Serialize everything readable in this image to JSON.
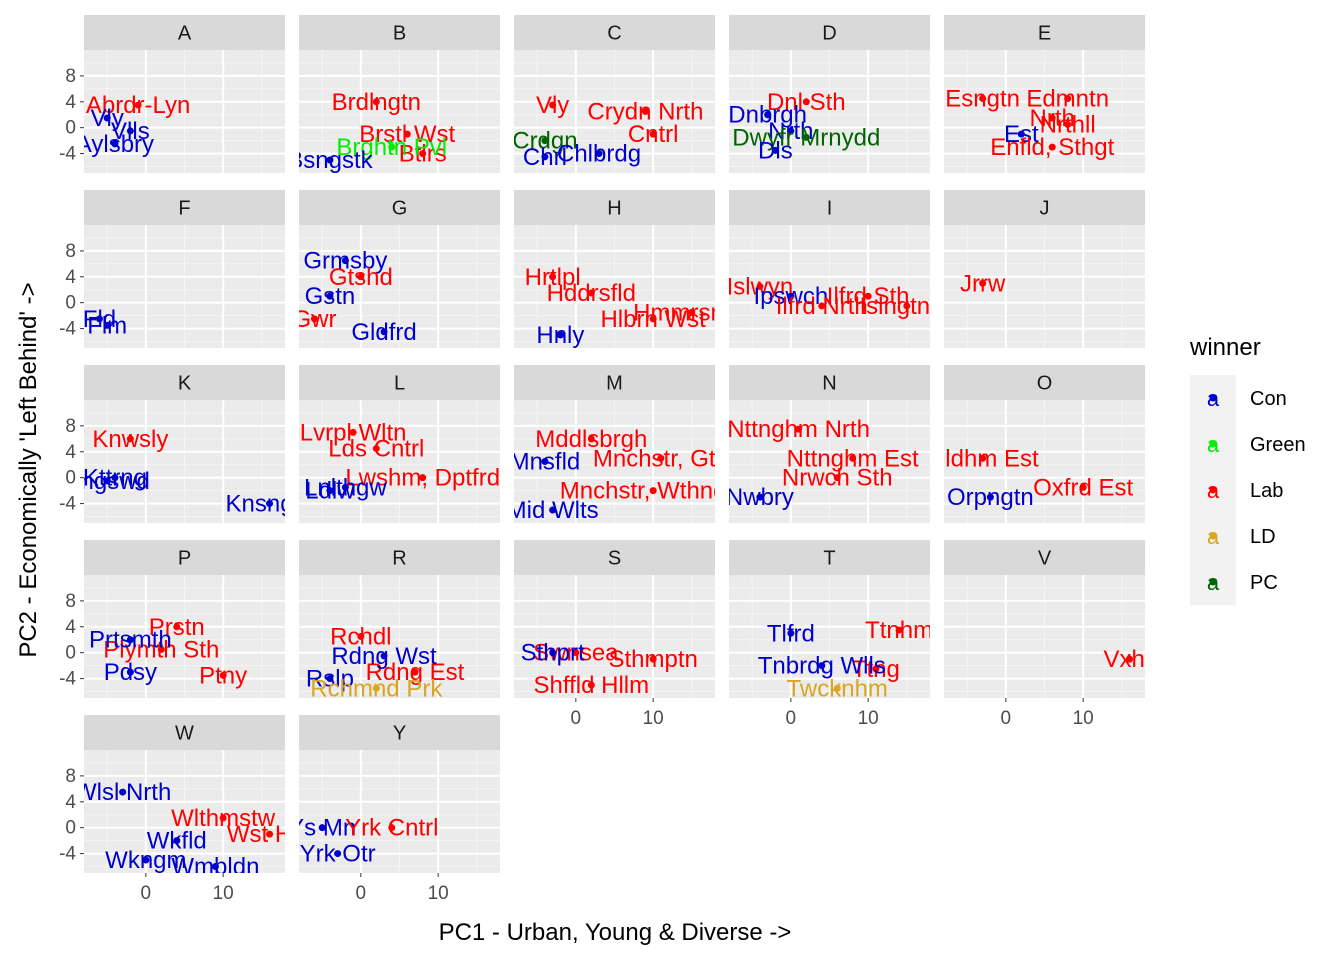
{
  "chart_data": {
    "type": "scatter",
    "facet_by": "first letter of constituency",
    "xlabel": "PC1 - Urban, Young & Diverse ->",
    "ylabel": "PC2 - Economically 'Left Behind' ->",
    "xlim": [
      -8,
      18
    ],
    "ylim": [
      -7,
      12
    ],
    "x_ticks": [
      0,
      10
    ],
    "y_ticks": [
      8,
      4,
      0,
      -4
    ],
    "legend": {
      "title": "winner",
      "entries": [
        {
          "name": "Con",
          "color": "#0000CD"
        },
        {
          "name": "Green",
          "color": "#00EE00"
        },
        {
          "name": "Lab",
          "color": "#FF0000"
        },
        {
          "name": "LD",
          "color": "#DAA520"
        },
        {
          "name": "PC",
          "color": "#006400"
        }
      ],
      "key_glyph": "a",
      "position": "right"
    },
    "panels": [
      {
        "facet": "A",
        "points": [
          {
            "label": "Abrdr-Lyn",
            "winner": "Lab",
            "x": -1,
            "y": 3.5
          },
          {
            "label": "Vly",
            "winner": "Con",
            "x": -5,
            "y": 1.5
          },
          {
            "label": "Vlls",
            "winner": "Con",
            "x": -2,
            "y": -0.5
          },
          {
            "label": "Aylsbry",
            "winner": "Con",
            "x": -4,
            "y": -2.5
          }
        ]
      },
      {
        "facet": "B",
        "points": [
          {
            "label": "Brdlngtn",
            "winner": "Lab",
            "x": 2,
            "y": 4
          },
          {
            "label": "Brstl Wst",
            "winner": "Lab",
            "x": 6,
            "y": -1
          },
          {
            "label": "Btlrs",
            "winner": "Lab",
            "x": 8,
            "y": -4
          },
          {
            "label": "Brghtn Pvl",
            "winner": "Green",
            "x": 4,
            "y": -3
          },
          {
            "label": "Bsngstk",
            "winner": "Con",
            "x": -4,
            "y": -5
          }
        ]
      },
      {
        "facet": "C",
        "points": [
          {
            "label": "Vly",
            "winner": "Lab",
            "x": -3,
            "y": 3.5
          },
          {
            "label": "Crydn Nrth",
            "winner": "Lab",
            "x": 9,
            "y": 2.5
          },
          {
            "label": "Cntrl",
            "winner": "Lab",
            "x": 10,
            "y": -1
          },
          {
            "label": "Crdgn",
            "winner": "PC",
            "x": -4,
            "y": -2
          },
          {
            "label": "Chlbrdg",
            "winner": "Con",
            "x": 3,
            "y": -4
          },
          {
            "label": "Chrl",
            "winner": "Con",
            "x": -4,
            "y": -4.5
          }
        ]
      },
      {
        "facet": "D",
        "points": [
          {
            "label": "Dnl Sth",
            "winner": "Lab",
            "x": 2,
            "y": 4
          },
          {
            "label": "Dnbrgh",
            "winner": "Con",
            "x": -3,
            "y": 2
          },
          {
            "label": "Nrth",
            "winner": "Con",
            "x": 0,
            "y": -0.5
          },
          {
            "label": "Dwyfr Mrnydd",
            "winner": "PC",
            "x": 2,
            "y": -1.5
          },
          {
            "label": "Dls",
            "winner": "Con",
            "x": -2,
            "y": -3.5
          }
        ]
      },
      {
        "facet": "E",
        "points": [
          {
            "label": "Esngtn",
            "winner": "Lab",
            "x": -3,
            "y": 4.5
          },
          {
            "label": "Edmntn",
            "winner": "Lab",
            "x": 8,
            "y": 4.5
          },
          {
            "label": "Nrth",
            "winner": "Lab",
            "x": 6,
            "y": 1.5
          },
          {
            "label": "Nrthll",
            "winner": "Lab",
            "x": 8,
            "y": 0.5
          },
          {
            "label": "Est",
            "winner": "Con",
            "x": 2,
            "y": -1
          },
          {
            "label": "Enfld, Sthgt",
            "winner": "Lab",
            "x": 6,
            "y": -3
          }
        ]
      },
      {
        "facet": "F",
        "points": [
          {
            "label": "Fld",
            "winner": "Con",
            "x": -6,
            "y": -2.5
          },
          {
            "label": "Flm",
            "winner": "Con",
            "x": -5,
            "y": -3.5
          }
        ]
      },
      {
        "facet": "G",
        "points": [
          {
            "label": "Grmsby",
            "winner": "Con",
            "x": -2,
            "y": 6.5
          },
          {
            "label": "Gtshd",
            "winner": "Lab",
            "x": 0,
            "y": 4
          },
          {
            "label": "Gstn",
            "winner": "Con",
            "x": -4,
            "y": 1
          },
          {
            "label": "Gwr",
            "winner": "Lab",
            "x": -6,
            "y": -2.5
          },
          {
            "label": "Gldfrd",
            "winner": "Con",
            "x": 3,
            "y": -4.5
          }
        ]
      },
      {
        "facet": "H",
        "points": [
          {
            "label": "Hrtlpl",
            "winner": "Lab",
            "x": -3,
            "y": 4
          },
          {
            "label": "Hddrsfld",
            "winner": "Lab",
            "x": 2,
            "y": 1.5
          },
          {
            "label": "Hmmrsmth",
            "winner": "Lab",
            "x": 15,
            "y": -1.5
          },
          {
            "label": "Hlbrn Wst",
            "winner": "Lab",
            "x": 10,
            "y": -2.5
          },
          {
            "label": "Hnly",
            "winner": "Con",
            "x": -2,
            "y": -5
          }
        ]
      },
      {
        "facet": "I",
        "points": [
          {
            "label": "Islwyn",
            "winner": "Lab",
            "x": -4,
            "y": 2.5
          },
          {
            "label": "Ipswch",
            "winner": "Con",
            "x": 0,
            "y": 1
          },
          {
            "label": "Ilfrd Sth",
            "winner": "Lab",
            "x": 10,
            "y": 1
          },
          {
            "label": "Ilfrd Nrth",
            "winner": "Lab",
            "x": 4,
            "y": -0.5
          },
          {
            "label": "Islngtn N",
            "winner": "Lab",
            "x": 15,
            "y": -0.5
          }
        ]
      },
      {
        "facet": "J",
        "points": [
          {
            "label": "Jrrw",
            "winner": "Lab",
            "x": -3,
            "y": 3
          }
        ]
      },
      {
        "facet": "K",
        "points": [
          {
            "label": "Knwsly",
            "winner": "Lab",
            "x": -2,
            "y": 6
          },
          {
            "label": "Kttrng",
            "winner": "Con",
            "x": -4,
            "y": 0
          },
          {
            "label": "Kngswd",
            "winner": "Con",
            "x": -5,
            "y": -0.5
          },
          {
            "label": "Knsngtn",
            "winner": "Con",
            "x": 16,
            "y": -4
          }
        ]
      },
      {
        "facet": "L",
        "points": [
          {
            "label": "Lvrpl Wltn",
            "winner": "Lab",
            "x": -1,
            "y": 7
          },
          {
            "label": "Lds Cntrl",
            "winner": "Lab",
            "x": 2,
            "y": 4.5
          },
          {
            "label": "Lwshm, Dptfrd",
            "winner": "Lab",
            "x": 8,
            "y": 0
          },
          {
            "label": "Ldlw",
            "winner": "Con",
            "x": -4,
            "y": -2
          },
          {
            "label": "Lnlthgw",
            "winner": "Con",
            "x": -2,
            "y": -1.5
          }
        ]
      },
      {
        "facet": "M",
        "points": [
          {
            "label": "Mddlsbrgh",
            "winner": "Lab",
            "x": 2,
            "y": 6
          },
          {
            "label": "Mnchstr, Gtn",
            "winner": "Lab",
            "x": 11,
            "y": 3
          },
          {
            "label": "Mnsfld",
            "winner": "Con",
            "x": -4,
            "y": 2.5
          },
          {
            "label": "Mnchstr, Wthngtn",
            "winner": "Lab",
            "x": 10,
            "y": -2
          },
          {
            "label": "Mid Wlts",
            "winner": "Con",
            "x": -3,
            "y": -5
          }
        ]
      },
      {
        "facet": "N",
        "points": [
          {
            "label": "Nttnghm Nrth",
            "winner": "Lab",
            "x": 1,
            "y": 7.5
          },
          {
            "label": "Nttnghm Est",
            "winner": "Lab",
            "x": 8,
            "y": 3
          },
          {
            "label": "Nrwch Sth",
            "winner": "Lab",
            "x": 6,
            "y": 0
          },
          {
            "label": "Nwbry",
            "winner": "Con",
            "x": -4,
            "y": -3
          }
        ]
      },
      {
        "facet": "O",
        "points": [
          {
            "label": "Oldhm Est",
            "winner": "Lab",
            "x": -3,
            "y": 3
          },
          {
            "label": "Oxfrd Est",
            "winner": "Lab",
            "x": 10,
            "y": -1.5
          },
          {
            "label": "Orpngtn",
            "winner": "Con",
            "x": -2,
            "y": -3
          }
        ]
      },
      {
        "facet": "P",
        "points": [
          {
            "label": "Prstn",
            "winner": "Lab",
            "x": 4,
            "y": 4
          },
          {
            "label": "Plymth Sth",
            "winner": "Lab",
            "x": 2,
            "y": 0.5
          },
          {
            "label": "Pdsy",
            "winner": "Con",
            "x": -2,
            "y": -3
          },
          {
            "label": "Ptny",
            "winner": "Lab",
            "x": 10,
            "y": -3.5
          },
          {
            "label": "Prtsmth",
            "winner": "Con",
            "x": -2,
            "y": 2
          }
        ]
      },
      {
        "facet": "R",
        "points": [
          {
            "label": "Rchdl",
            "winner": "Lab",
            "x": 0,
            "y": 2.5
          },
          {
            "label": "Rdng Est",
            "winner": "Lab",
            "x": 7,
            "y": -3
          },
          {
            "label": "Rdng Wst",
            "winner": "Con",
            "x": 3,
            "y": -0.5
          },
          {
            "label": "Rslp",
            "winner": "Con",
            "x": -4,
            "y": -4
          },
          {
            "label": "Rchmnd Prk",
            "winner": "LD",
            "x": 2,
            "y": -5.5
          }
        ]
      },
      {
        "facet": "S",
        "points": [
          {
            "label": "Sthmptn",
            "winner": "Lab",
            "x": 10,
            "y": -1
          },
          {
            "label": "Swnsea",
            "winner": "Lab",
            "x": 0,
            "y": 0
          },
          {
            "label": "Shffld Hllm",
            "winner": "Lab",
            "x": 2,
            "y": -5
          },
          {
            "label": "Sthprt",
            "winner": "Con",
            "x": -3,
            "y": 0
          }
        ]
      },
      {
        "facet": "T",
        "points": [
          {
            "label": "Ttnhm",
            "winner": "Lab",
            "x": 14,
            "y": 3.5
          },
          {
            "label": "Tlfrd",
            "winner": "Con",
            "x": 0,
            "y": 3
          },
          {
            "label": "Ttng",
            "winner": "Lab",
            "x": 11,
            "y": -2.5
          },
          {
            "label": "Twcknhm",
            "winner": "LD",
            "x": 6,
            "y": -5.5
          },
          {
            "label": "Tnbrdg Wlls",
            "winner": "Con",
            "x": 4,
            "y": -2
          }
        ]
      },
      {
        "facet": "V",
        "points": [
          {
            "label": "Vxhll",
            "winner": "Lab",
            "x": 16,
            "y": -1
          }
        ]
      },
      {
        "facet": "W",
        "points": [
          {
            "label": "Wlsl Nrth",
            "winner": "Con",
            "x": -3,
            "y": 5.5
          },
          {
            "label": "Wlthmstw",
            "winner": "Lab",
            "x": 10,
            "y": 1.5
          },
          {
            "label": "Wst Hm",
            "winner": "Lab",
            "x": 16,
            "y": -1
          },
          {
            "label": "Wkfld",
            "winner": "Con",
            "x": 4,
            "y": -2
          },
          {
            "label": "Wkngm",
            "winner": "Con",
            "x": 0,
            "y": -5
          },
          {
            "label": "Wmbldn",
            "winner": "Con",
            "x": 9,
            "y": -6
          }
        ]
      },
      {
        "facet": "Y",
        "points": [
          {
            "label": "Ys Mn",
            "winner": "Con",
            "x": -5,
            "y": 0
          },
          {
            "label": "Yrk Cntrl",
            "winner": "Lab",
            "x": 4,
            "y": 0
          },
          {
            "label": "Yrk Otr",
            "winner": "Con",
            "x": -3,
            "y": -4
          }
        ]
      }
    ]
  }
}
